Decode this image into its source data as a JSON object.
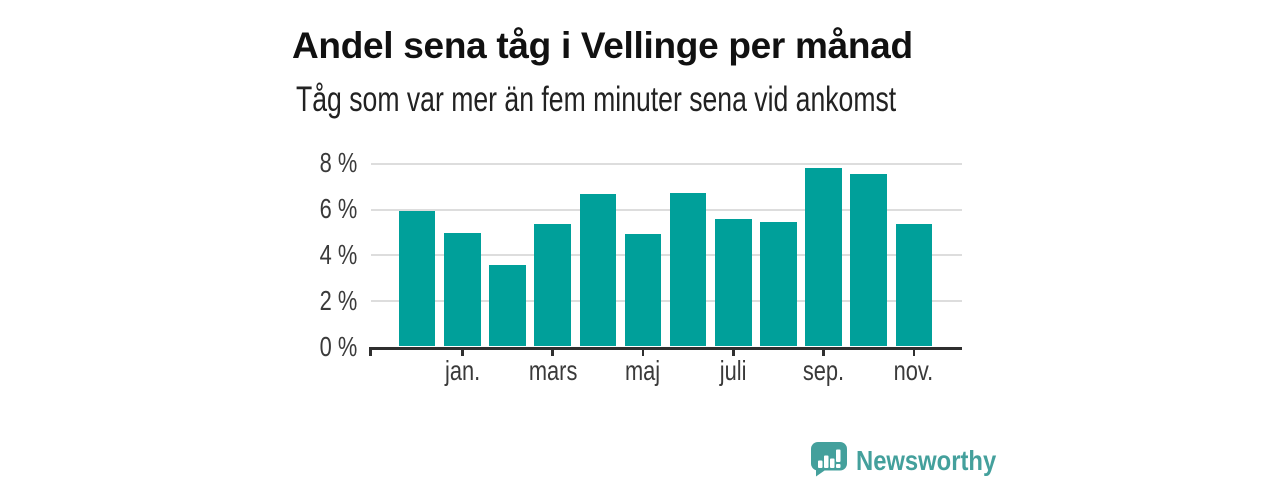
{
  "header": {
    "title": "Andel sena tåg i Vellinge per månad",
    "subtitle": "Tåg som var mer än fem minuter sena vid ankomst"
  },
  "chart_data": {
    "type": "bar",
    "title": "Andel sena tåg i Vellinge per månad",
    "subtitle": "Tåg som var mer än fem minuter sena vid ankomst",
    "unit": "%",
    "x_labels": [
      "",
      "jan.",
      "",
      "mars",
      "",
      "maj",
      "",
      "juli",
      "",
      "sep.",
      "",
      "nov."
    ],
    "values": [
      5.9,
      4.95,
      3.55,
      5.35,
      6.65,
      4.9,
      6.7,
      5.55,
      5.45,
      7.8,
      7.55,
      5.35
    ],
    "y_ticks": [
      0,
      2,
      4,
      6,
      8
    ],
    "y_tick_labels": [
      "0 %",
      "2 %",
      "4 %",
      "6 %",
      "8 %"
    ],
    "ylim": [
      0,
      8
    ],
    "grid": "horizontal",
    "legend": "none"
  },
  "footer": {
    "brand": "Newsworthy"
  },
  "colors": {
    "bar": "#00a09a",
    "grid": "#dddddd",
    "axis": "#2f2f2f",
    "title_text": "#111111",
    "axis_text": "#3a3a3a",
    "brand_teal": "#44a09c",
    "background": "#ffffff"
  }
}
